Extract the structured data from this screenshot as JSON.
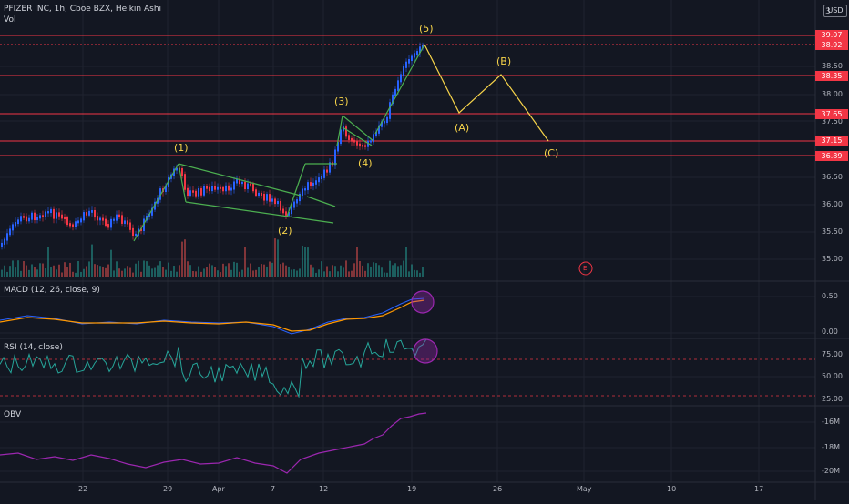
{
  "header": {
    "title": "PFIZER INC, 1h, Cboe BZX, Heikin Ashi",
    "vol_label": "Vol",
    "currency": "USD",
    "top_value": "3"
  },
  "price_axis": {
    "ticks": [
      "38.50",
      "38.00",
      "37.50",
      "36.50",
      "36.00",
      "35.50",
      "35.00"
    ],
    "tags": [
      "39.07",
      "38.92",
      "38.35",
      "37.65",
      "37.15",
      "36.89"
    ]
  },
  "wave_labels": [
    "(1)",
    "(2)",
    "(3)",
    "(4)",
    "(5)",
    "(A)",
    "(B)",
    "(C)"
  ],
  "event_marker": "E",
  "panes": {
    "macd": {
      "label": "MACD (12, 26, close, 9)",
      "ticks": [
        "0.50",
        "0.00"
      ]
    },
    "rsi": {
      "label": "RSI (14, close)",
      "ticks": [
        "75.00",
        "50.00",
        "25.00"
      ]
    },
    "obv": {
      "label": "OBV",
      "ticks": [
        "-16M",
        "-18M",
        "-20M"
      ]
    }
  },
  "time_axis": [
    "22",
    "29",
    "Apr",
    "7",
    "12",
    "19",
    "26",
    "May",
    "10",
    "17"
  ],
  "colors": {
    "up": "#2962ff",
    "down": "#f23645",
    "level": "#f23645",
    "wave": "#f7d44a",
    "pattern": "#4caf50",
    "macd": "#ff9800",
    "rsi": "#26a69a",
    "obv": "#9c27b0",
    "highlight": "#9c27b0"
  }
}
